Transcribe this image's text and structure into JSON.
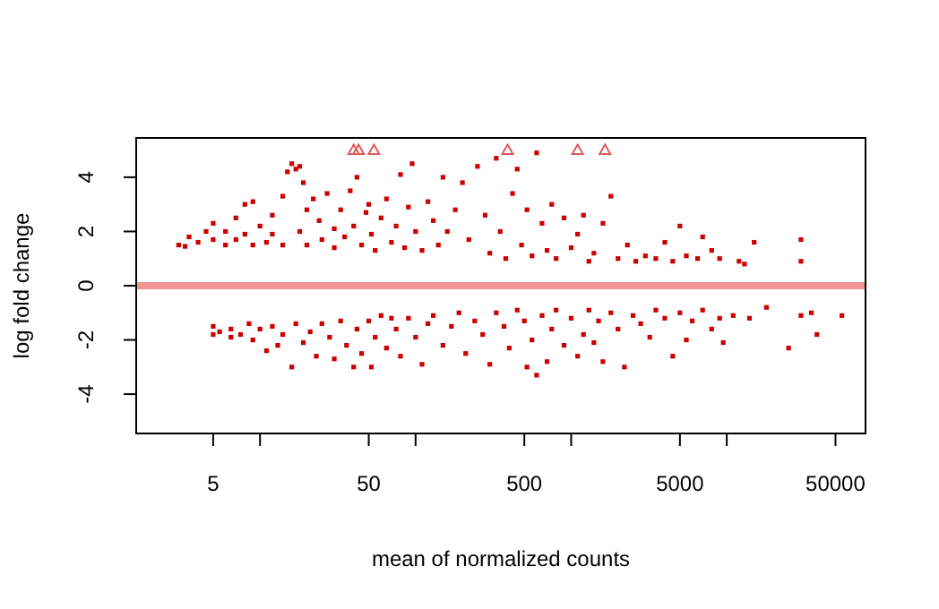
{
  "chart_data": {
    "type": "scatter",
    "xlabel": "mean of normalized counts",
    "ylabel": "log fold change",
    "log": "x",
    "grid": false,
    "xlim": [
      1.6,
      78000
    ],
    "ylim": [
      -5.45,
      5.45
    ],
    "xticks": [
      5,
      {
        "value": 10,
        "label": null
      },
      50,
      {
        "value": 100,
        "label": null
      },
      500,
      {
        "value": 1000,
        "label": null
      },
      5000,
      {
        "value": 10000,
        "label": null
      },
      50000
    ],
    "yticks": [
      -4,
      -2,
      0,
      2,
      4
    ],
    "ref_lines": [
      {
        "axis": "y",
        "value": 0,
        "color": "#f08080"
      }
    ],
    "series": [
      {
        "color": "#cc0000",
        "marker": "square",
        "x": [
          3,
          3.3,
          3.5,
          4,
          4.5,
          5,
          5,
          6,
          6,
          7,
          7,
          8,
          8,
          9,
          9,
          10,
          11,
          12,
          12,
          14,
          14,
          15,
          16,
          17,
          18,
          18,
          19,
          20,
          20,
          22,
          24,
          25,
          27,
          30,
          30,
          33,
          35,
          38,
          40,
          42,
          45,
          48,
          50,
          52,
          55,
          60,
          65,
          70,
          75,
          80,
          85,
          90,
          95,
          100,
          110,
          120,
          130,
          140,
          150,
          160,
          180,
          200,
          220,
          250,
          280,
          300,
          330,
          350,
          380,
          420,
          450,
          480,
          520,
          560,
          600,
          650,
          700,
          750,
          800,
          900,
          1000,
          1100,
          1200,
          1300,
          1400,
          1600,
          1800,
          2000,
          2300,
          2600,
          3000,
          3500,
          4000,
          4500,
          5000,
          5500,
          6500,
          7000,
          8000,
          9000,
          12000,
          13000,
          15000,
          30000,
          30000,
          5,
          5,
          5.5,
          6.5,
          6.5,
          7.5,
          8.5,
          9,
          10,
          11,
          12,
          13,
          14,
          16,
          17,
          19,
          21,
          23,
          25,
          28,
          30,
          33,
          36,
          40,
          42,
          45,
          50,
          52,
          55,
          60,
          65,
          70,
          75,
          80,
          90,
          100,
          110,
          120,
          130,
          150,
          170,
          190,
          210,
          240,
          270,
          300,
          330,
          370,
          400,
          450,
          500,
          520,
          560,
          600,
          650,
          700,
          750,
          800,
          900,
          1000,
          1100,
          1200,
          1300,
          1400,
          1500,
          1600,
          1800,
          2000,
          2200,
          2500,
          2800,
          3200,
          3500,
          4000,
          4500,
          5000,
          5500,
          6000,
          7000,
          8000,
          9000,
          9500,
          11000,
          14000,
          18000,
          25000,
          30000,
          35000,
          38000,
          55000
        ],
        "values": [
          1.5,
          1.45,
          1.8,
          1.6,
          2.0,
          1.7,
          2.3,
          1.5,
          2.0,
          2.5,
          1.7,
          3.0,
          1.9,
          3.1,
          1.5,
          2.2,
          1.6,
          2.6,
          1.9,
          3.3,
          1.5,
          4.2,
          4.5,
          4.3,
          4.4,
          2.0,
          3.8,
          2.8,
          1.5,
          3.2,
          2.4,
          1.7,
          3.4,
          2.1,
          1.4,
          2.8,
          1.8,
          3.5,
          2.2,
          4.0,
          1.5,
          2.7,
          3.0,
          1.9,
          1.3,
          2.5,
          3.2,
          1.6,
          2.2,
          4.1,
          1.4,
          2.9,
          4.5,
          2.0,
          1.3,
          3.1,
          2.4,
          1.5,
          4.0,
          2.0,
          2.8,
          3.8,
          1.7,
          4.4,
          2.6,
          1.2,
          4.7,
          2.0,
          1.0,
          3.4,
          4.3,
          1.5,
          2.8,
          1.1,
          4.9,
          2.3,
          1.3,
          3.0,
          1.0,
          2.5,
          1.4,
          1.9,
          2.6,
          0.9,
          1.2,
          2.3,
          3.3,
          1.0,
          1.5,
          0.9,
          1.1,
          1.0,
          1.6,
          0.9,
          2.2,
          1.1,
          1.0,
          1.8,
          1.3,
          1.0,
          0.9,
          0.8,
          1.6,
          1.7,
          0.9,
          -1.5,
          -1.8,
          -1.7,
          -1.6,
          -1.9,
          -1.8,
          -1.4,
          -2.0,
          -1.6,
          -2.4,
          -1.5,
          -2.2,
          -1.8,
          -3.0,
          -1.4,
          -2.1,
          -1.7,
          -2.6,
          -1.4,
          -1.9,
          -2.7,
          -1.3,
          -2.2,
          -3.0,
          -1.6,
          -2.5,
          -1.3,
          -3.0,
          -1.9,
          -1.1,
          -2.3,
          -1.2,
          -1.6,
          -2.6,
          -1.2,
          -1.9,
          -2.9,
          -1.4,
          -1.1,
          -2.2,
          -1.5,
          -1.0,
          -2.5,
          -1.3,
          -1.8,
          -2.9,
          -1.0,
          -1.5,
          -2.3,
          -0.9,
          -1.3,
          -3.0,
          -2.0,
          -3.3,
          -1.1,
          -2.8,
          -1.6,
          -0.9,
          -2.2,
          -1.2,
          -2.6,
          -1.8,
          -0.9,
          -2.1,
          -1.3,
          -2.8,
          -1.0,
          -1.6,
          -3.0,
          -1.1,
          -1.4,
          -1.9,
          -0.9,
          -1.2,
          -2.6,
          -1.0,
          -2.0,
          -1.3,
          -0.9,
          -1.6,
          -1.2,
          -2.1,
          -1.1,
          -1.2,
          -0.8,
          -2.3,
          -1.1,
          -1.0,
          -1.8,
          -1.1
        ]
      },
      {
        "color": "#e05a5a",
        "marker": "triangle",
        "x": [
          40,
          43,
          54,
          390,
          1100,
          1650
        ],
        "values": [
          5,
          5,
          5,
          5,
          5,
          5
        ]
      }
    ]
  }
}
